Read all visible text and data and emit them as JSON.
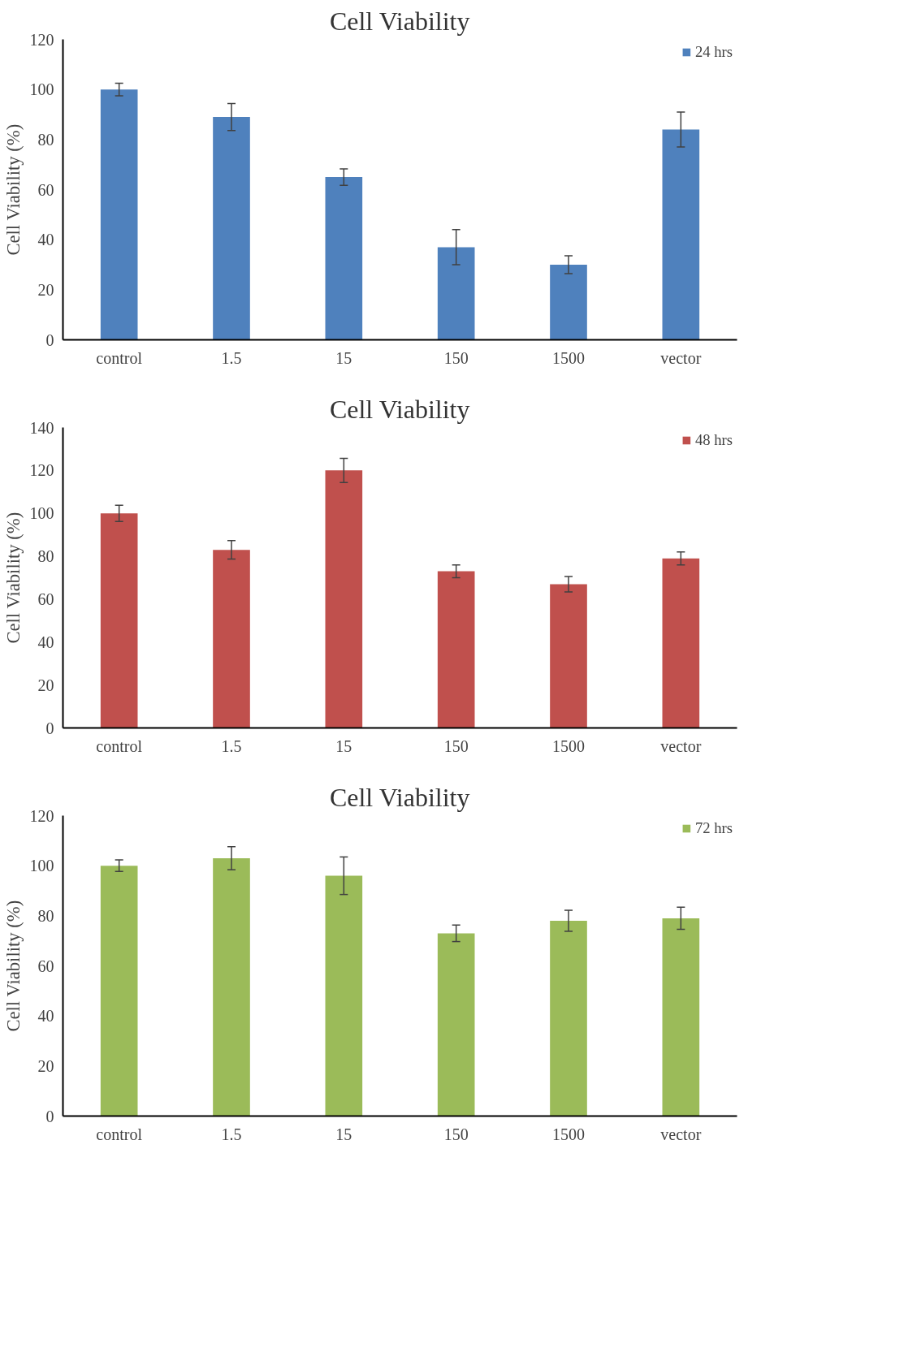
{
  "chart_data": [
    {
      "type": "bar",
      "title": "Cell Viability",
      "ylabel": "Cell Viability (%)",
      "categories": [
        "control",
        "1.5",
        "15",
        "150",
        "1500",
        "vector"
      ],
      "series": [
        {
          "name": "24 hrs",
          "color": "#4f81bd",
          "values": [
            100,
            89,
            65,
            37,
            30,
            84
          ],
          "errors": [
            2.5,
            5.4,
            3.3,
            7,
            3.6,
            7
          ]
        }
      ],
      "ylim": [
        0,
        120
      ],
      "yticks": [
        0,
        20,
        40,
        60,
        80,
        100,
        120
      ],
      "grid": false,
      "legend": "top right"
    },
    {
      "type": "bar",
      "title": "Cell Viability",
      "ylabel": "Cell Viability (%)",
      "categories": [
        "control",
        "1.5",
        "15",
        "150",
        "1500",
        "vector"
      ],
      "series": [
        {
          "name": "48 hrs",
          "color": "#c0504d",
          "values": [
            100,
            83,
            120,
            73,
            67,
            79
          ],
          "errors": [
            3.8,
            4.3,
            5.6,
            3,
            3.6,
            3
          ]
        }
      ],
      "ylim": [
        0,
        140
      ],
      "yticks": [
        0,
        20,
        40,
        60,
        80,
        100,
        120,
        140
      ],
      "grid": false,
      "legend": "top right"
    },
    {
      "type": "bar",
      "title": "Cell Viability",
      "ylabel": "Cell Viability (%)",
      "categories": [
        "control",
        "1.5",
        "15",
        "150",
        "1500",
        "vector"
      ],
      "series": [
        {
          "name": "72 hrs",
          "color": "#9bbb59",
          "values": [
            100,
            103,
            96,
            73,
            78,
            79
          ],
          "errors": [
            2.3,
            4.6,
            7.5,
            3.3,
            4.2,
            4.4
          ]
        }
      ],
      "ylim": [
        0,
        120
      ],
      "yticks": [
        0,
        20,
        40,
        60,
        80,
        100,
        120
      ],
      "grid": false,
      "legend": "top right"
    }
  ]
}
